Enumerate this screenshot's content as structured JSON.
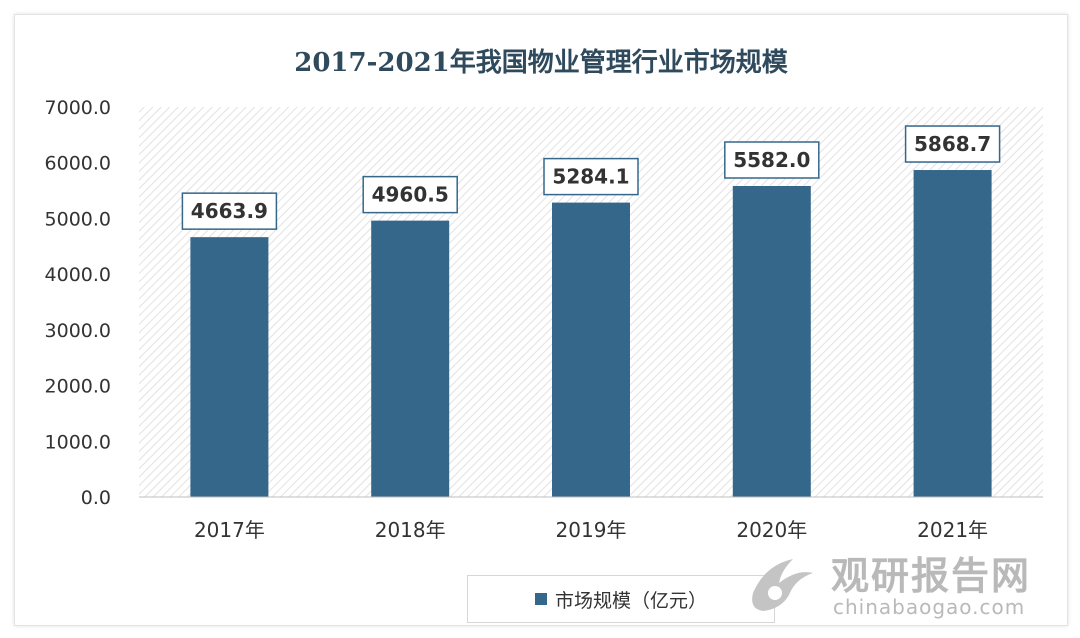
{
  "chart_data": {
    "type": "bar",
    "title": "2017-2021年我国物业管理行业市场规模",
    "categories": [
      "2017年",
      "2018年",
      "2019年",
      "2020年",
      "2021年"
    ],
    "series": [
      {
        "name": "市场规模（亿元）",
        "values": [
          4663.9,
          4960.5,
          5284.1,
          5582.0,
          5868.7
        ],
        "labels": [
          "4663.9",
          "4960.5",
          "5284.1",
          "5582.0",
          "5868.7"
        ],
        "color": "#34678a"
      }
    ],
    "yticks": [
      "0.0",
      "1000.0",
      "2000.0",
      "3000.0",
      "4000.0",
      "5000.0",
      "6000.0",
      "7000.0"
    ],
    "ylim": [
      0,
      7000
    ],
    "xlabel": "",
    "ylabel": "",
    "legend_position": "bottom",
    "plot_background": "diagonal-hatch"
  },
  "watermark": {
    "brand_cn": "观研报告网",
    "url": "chinabaogao.com",
    "color": "#b9b9b9"
  }
}
